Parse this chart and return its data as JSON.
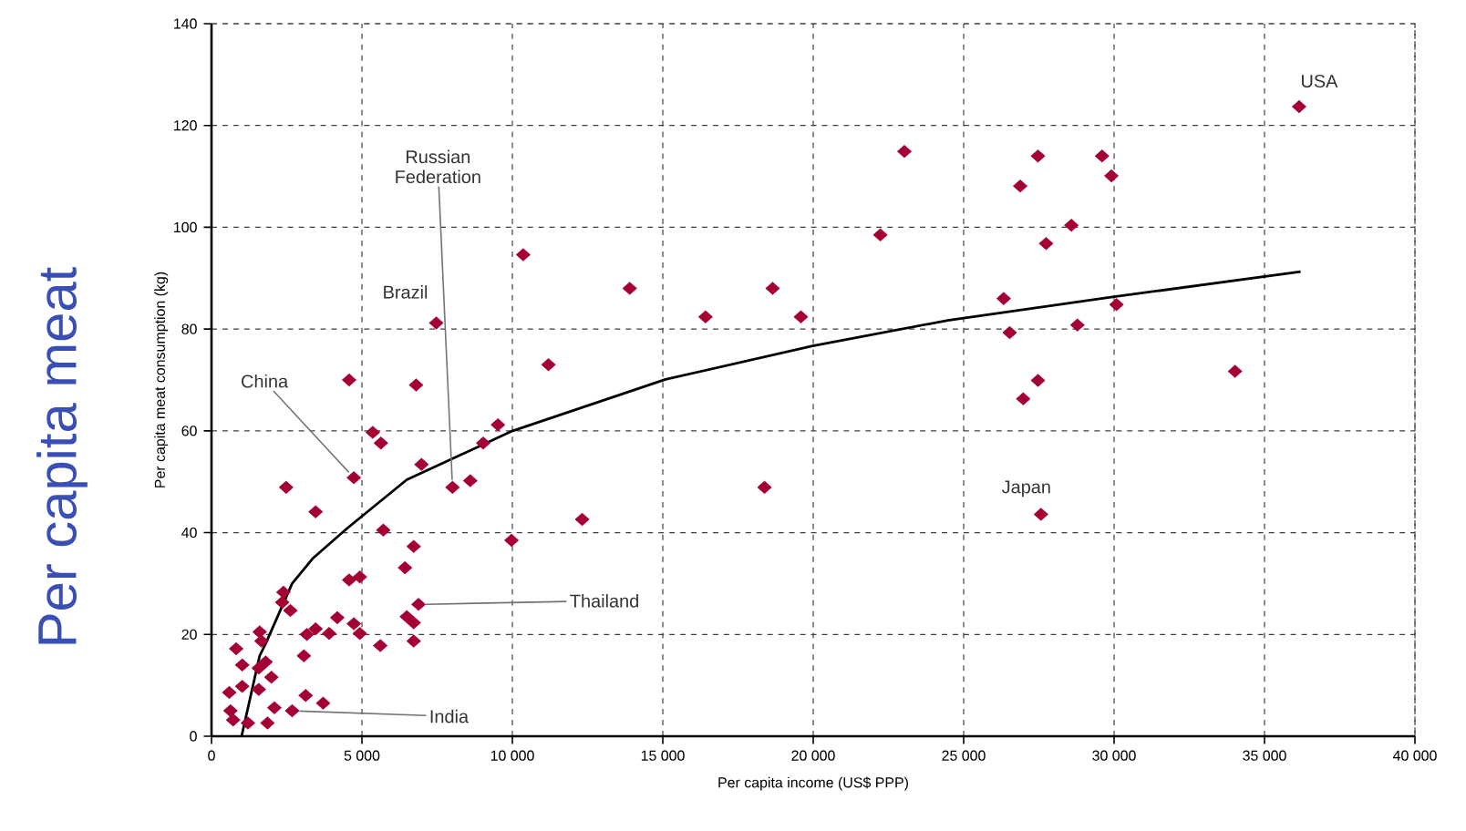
{
  "chart_data": {
    "type": "scatter",
    "xlabel": "Per capita income (US$ PPP)",
    "ylabel": "Per capita meat consumption (kg)",
    "xlim": [
      0,
      40000
    ],
    "ylim": [
      0,
      140
    ],
    "xticks": [
      0,
      {
        "value": 5000,
        "label": "5 000"
      },
      {
        "value": 10000,
        "label": "10 000"
      },
      {
        "value": 15000,
        "label": "15 000"
      },
      {
        "value": 20000,
        "label": "20 000"
      },
      {
        "value": 25000,
        "label": "25 000"
      },
      {
        "value": 30000,
        "label": "30 000"
      },
      {
        "value": 35000,
        "label": "35 000"
      },
      {
        "value": 40000,
        "label": "40 000"
      }
    ],
    "yticks": [
      0,
      20,
      40,
      60,
      80,
      100,
      120,
      140
    ],
    "grid": true,
    "marker": "diamond",
    "series": [
      {
        "color": "#a50034",
        "x": [
          10360,
          13900,
          7470,
          11200,
          4575,
          6800,
          5360,
          5630,
          9520,
          9030,
          6980,
          4730,
          8010,
          8600,
          2480,
          3460,
          12320,
          5710,
          9970,
          6720,
          6430,
          4575,
          4930,
          2390,
          2350,
          2620,
          6880,
          4180,
          6490,
          6720,
          4730,
          3460,
          3170,
          3910,
          4930,
          5610,
          6720,
          3070,
          1600,
          1660,
          820,
          1020,
          1570,
          1800,
          1990,
          590,
          1020,
          1570,
          630,
          720,
          1210,
          1860,
          2090,
          2680,
          3130,
          3710,
          16420,
          18650,
          19590,
          18380,
          22230,
          23030,
          27470,
          26880,
          29600,
          29910,
          28580,
          27740,
          26330,
          26530,
          30080,
          28780,
          27470,
          26980,
          34020,
          27570,
          36150
        ],
        "values": [
          94.6,
          88,
          81.2,
          73,
          70,
          69,
          59.7,
          57.6,
          61.2,
          57.6,
          53.4,
          50.8,
          48.9,
          50.2,
          48.9,
          44.1,
          42.6,
          40.5,
          38.5,
          37.3,
          33.1,
          30.7,
          31.3,
          28.3,
          26.3,
          24.7,
          25.9,
          23.3,
          23.5,
          22.3,
          22.1,
          21.1,
          20,
          20.2,
          20.2,
          17.8,
          18.7,
          15.8,
          20.5,
          18.7,
          17.2,
          14,
          13.4,
          14.6,
          11.6,
          8.6,
          9.8,
          9.2,
          5,
          3.2,
          2.6,
          2.6,
          5.6,
          5,
          8,
          6.5,
          82.4,
          88,
          82.4,
          48.9,
          98.5,
          114.9,
          114,
          108.1,
          114,
          110.1,
          100.4,
          96.8,
          86,
          79.3,
          84.8,
          80.8,
          69.9,
          66.3,
          71.7,
          43.6,
          123.7
        ]
      },
      {
        "type": "line",
        "color": "#000000",
        "marker": "none",
        "x": [
          1000,
          1600,
          1800,
          2680,
          3360,
          4520,
          6490,
          10010,
          15090,
          19980,
          24470,
          29950,
          36200
        ],
        "values": [
          0,
          15.8,
          18.2,
          30,
          34.9,
          40.9,
          50.4,
          60,
          70.1,
          76.7,
          81.7,
          86.3,
          91.3
        ]
      }
    ],
    "annotations": [
      {
        "text": "USA",
        "x": 36150,
        "y": 123.7
      },
      {
        "text": "Japan",
        "x": 27570,
        "y": 43.6
      },
      {
        "text": "Brazil",
        "x": 7470,
        "y": 81.2
      },
      {
        "text": "China",
        "x": 4730,
        "y": 50.8
      },
      {
        "text": "Russian Federation",
        "x": 8010,
        "y": 48.9
      },
      {
        "text": "Thailand",
        "x": 6880,
        "y": 25.9
      },
      {
        "text": "India",
        "x": 2680,
        "y": 5
      },
      "Per capita meat"
    ]
  }
}
